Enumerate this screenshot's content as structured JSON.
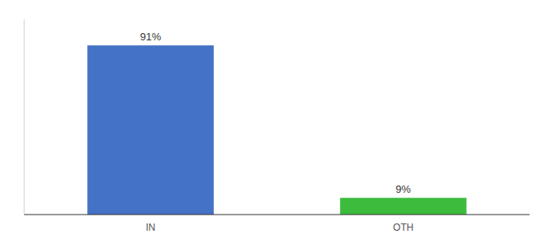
{
  "chart_data": {
    "type": "bar",
    "categories": [
      "IN",
      "OTH"
    ],
    "values": [
      91,
      9
    ],
    "value_labels": [
      "91%",
      "9%"
    ],
    "data_labels": true,
    "colors": [
      "#4472c4",
      "#3dbb3d"
    ],
    "ylim": [
      0,
      105
    ],
    "tick_labels": "x"
  }
}
